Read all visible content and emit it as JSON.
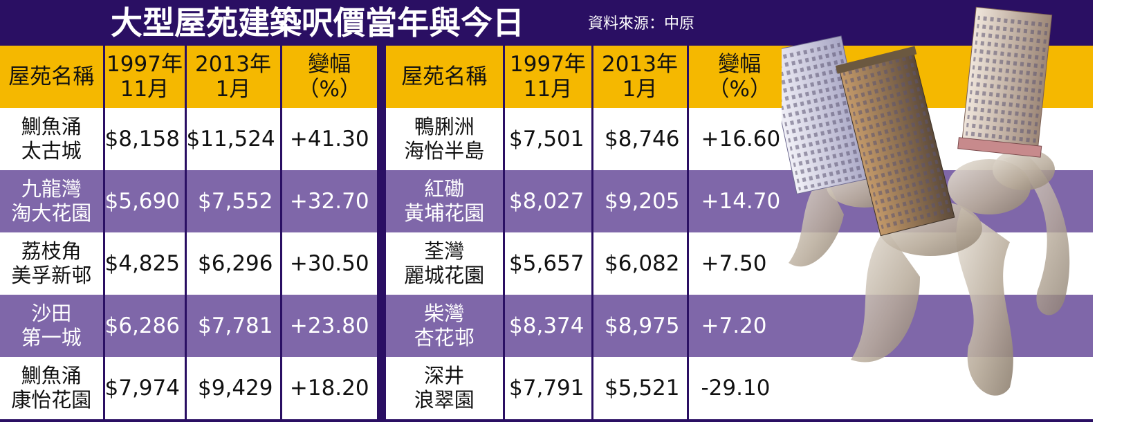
{
  "title": "大型屋苑建築呎價當年與今日",
  "source": "資料來源：中原",
  "colors": {
    "dark_purple": "#2a0f63",
    "header_yellow": "#f5b800",
    "stripe_purple": "#7f67a9"
  },
  "chart_data": {
    "type": "table",
    "columns": [
      {
        "name": "屋苑名稱",
        "lines": [
          "屋苑名稱"
        ]
      },
      {
        "name": "1997年11月",
        "lines": [
          "1997年",
          "11月"
        ]
      },
      {
        "name": "2013年1月",
        "lines": [
          "2013年",
          "1月"
        ]
      },
      {
        "name": "變幅(%)",
        "lines": [
          "變幅",
          "（%）"
        ]
      }
    ],
    "left": [
      {
        "name": [
          "鰂魚涌",
          "太古城"
        ],
        "p1997": "$8,158",
        "p2013": "$11,524",
        "change": "+41.30"
      },
      {
        "name": [
          "九龍灣",
          "淘大花園"
        ],
        "p1997": "$5,690",
        "p2013": "$7,552",
        "change": "+32.70"
      },
      {
        "name": [
          "荔枝角",
          "美孚新邨"
        ],
        "p1997": "$4,825",
        "p2013": "$6,296",
        "change": "+30.50"
      },
      {
        "name": [
          "沙田",
          "第一城"
        ],
        "p1997": "$6,286",
        "p2013": "$7,781",
        "change": "+23.80"
      },
      {
        "name": [
          "鰂魚涌",
          "康怡花園"
        ],
        "p1997": "$7,974",
        "p2013": "$9,429",
        "change": "+18.20"
      }
    ],
    "right": [
      {
        "name": [
          "鴨脷洲",
          "海怡半島"
        ],
        "p1997": "$7,501",
        "p2013": "$8,746",
        "change": "+16.60"
      },
      {
        "name": [
          "紅磡",
          "黃埔花園"
        ],
        "p1997": "$8,027",
        "p2013": "$9,205",
        "change": "+14.70"
      },
      {
        "name": [
          "荃灣",
          "麗城花園"
        ],
        "p1997": "$5,657",
        "p2013": "$6,082",
        "change": "+7.50"
      },
      {
        "name": [
          "柴灣",
          "杏花邨"
        ],
        "p1997": "$8,374",
        "p2013": "$8,975",
        "change": "+7.20"
      },
      {
        "name": [
          "深井",
          "浪翠園"
        ],
        "p1997": "$7,791",
        "p2013": "$5,521",
        "change": "-29.10"
      }
    ]
  }
}
